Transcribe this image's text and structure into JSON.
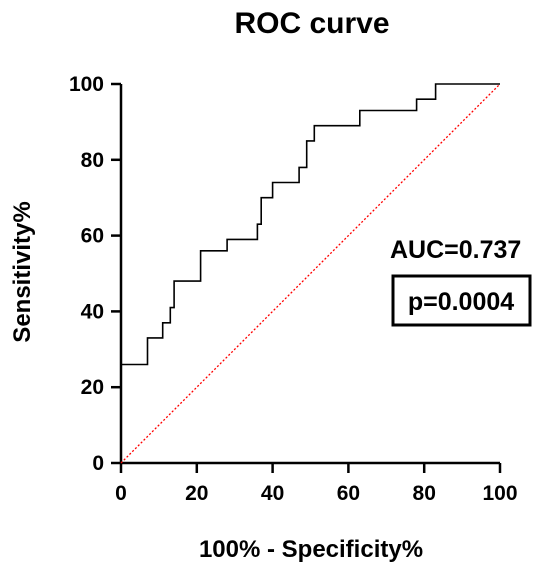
{
  "chart_data": {
    "type": "line",
    "title": "ROC curve",
    "xlabel": "100% - Specificity%",
    "ylabel": "Sensitivity%",
    "xlim": [
      0,
      100
    ],
    "ylim": [
      0,
      100
    ],
    "xticks": [
      "0",
      "20",
      "40",
      "60",
      "80",
      "100"
    ],
    "yticks": [
      "0",
      "20",
      "40",
      "60",
      "80",
      "100"
    ],
    "series": [
      {
        "style": "step",
        "color": "#000000",
        "x": [
          0,
          0,
          7,
          7,
          11,
          11,
          13,
          13,
          14,
          14,
          21,
          21,
          28,
          28,
          36,
          36,
          37,
          37,
          40,
          40,
          47,
          47,
          49,
          49,
          51,
          51,
          54,
          54,
          63,
          63,
          78,
          78,
          83,
          83,
          100
        ],
        "y": [
          0,
          26,
          26,
          33,
          33,
          37,
          37,
          41,
          41,
          48,
          48,
          56,
          56,
          59,
          59,
          63,
          63,
          70,
          70,
          74,
          74,
          78,
          78,
          85,
          85,
          89,
          89,
          89,
          89,
          93,
          93,
          96,
          96,
          100,
          100
        ]
      },
      {
        "style": "dotted",
        "color": "#ff0000",
        "x": [
          0,
          100
        ],
        "y": [
          0,
          100
        ]
      }
    ],
    "grid": false,
    "annotations": {
      "auc": "AUC=0.737",
      "p": "p=0.0004"
    }
  }
}
